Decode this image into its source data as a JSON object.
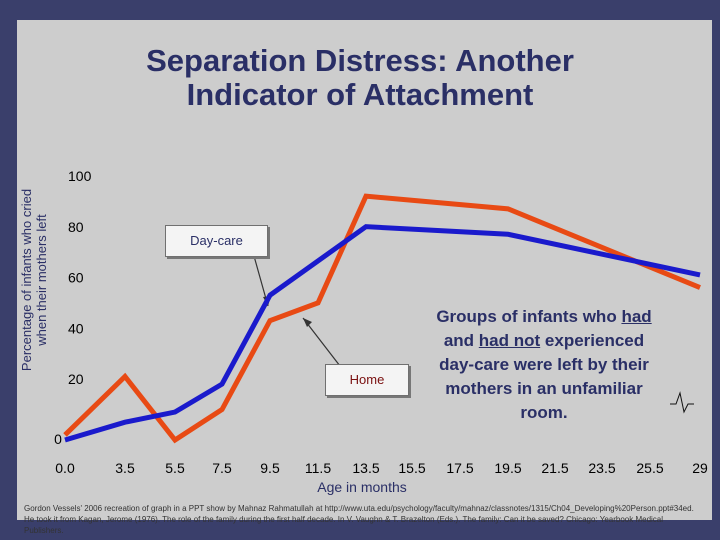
{
  "title_lines": [
    "Separation Distress: Another",
    "Indicator of Attachment"
  ],
  "note": {
    "pre": "Groups of infants who ",
    "had": "had",
    "mid": " and ",
    "had_not": "had not",
    "post": " experienced day-care were left by their mothers in an unfamiliar room."
  },
  "credit_lines": [
    "Gordon Vessels' 2006 recreation of graph in a PPT show by Mahnaz Rahmatullah at http://www.uta.edu/psychology/faculty/mahnaz/classnotes/1315/Ch04_Developing%20Person.ppt#34ed.",
    "He took it from Kagan, Jerome (1976). The role of the family during the first half decade. In V. Vaughn & T. Brazelton (Eds.). The family: Can it be saved? Chicago: Yearbook Medical Publishers."
  ],
  "colors": {
    "daycare": "#1a1acc",
    "home": "#e84a14",
    "text": "#2a2f66",
    "background": "#3a3f6b",
    "panel": "#cdcdcd"
  },
  "chart_data": {
    "type": "line",
    "title": "Separation Distress: Another Indicator of Attachment",
    "xlabel": "Age in months",
    "ylabel_lines": [
      "Percentage of infants who cried",
      "when their mothers left"
    ],
    "x_ticks": [
      "0.0",
      "3.5",
      "5.5",
      "7.5",
      "9.5",
      "11.5",
      "13.5",
      "15.5",
      "17.5",
      "19.5",
      "21.5",
      "23.5",
      "25.5",
      "29"
    ],
    "y_ticks": [
      "0",
      "20",
      "40",
      "60",
      "80",
      "100"
    ],
    "ylim": [
      0,
      100
    ],
    "axis_break_after": "25.5",
    "series": [
      {
        "name": "Day-care",
        "points": [
          {
            "x": "0.0",
            "y": 0
          },
          {
            "x": "3.5",
            "y": 7
          },
          {
            "x": "5.5",
            "y": 11
          },
          {
            "x": "7.5",
            "y": 22
          },
          {
            "x": "9.5",
            "y": 57
          },
          {
            "x": "13.5",
            "y": 84
          },
          {
            "x": "19.5",
            "y": 81
          },
          {
            "x": "29",
            "y": 65
          }
        ]
      },
      {
        "name": "Home",
        "points": [
          {
            "x": "0.0",
            "y": 2
          },
          {
            "x": "3.5",
            "y": 25
          },
          {
            "x": "5.5",
            "y": 0
          },
          {
            "x": "7.5",
            "y": 12
          },
          {
            "x": "9.5",
            "y": 47
          },
          {
            "x": "11.5",
            "y": 54
          },
          {
            "x": "13.5",
            "y": 96
          },
          {
            "x": "19.5",
            "y": 91
          },
          {
            "x": "29",
            "y": 60
          }
        ]
      }
    ]
  }
}
